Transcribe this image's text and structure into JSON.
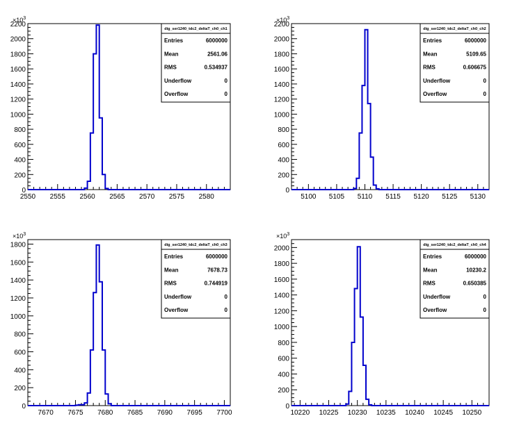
{
  "chart_data": [
    {
      "type": "histogram",
      "title": "",
      "xlabel": "",
      "ylabel": "",
      "xlim": [
        2550,
        2584
      ],
      "ylim": [
        0,
        2200
      ],
      "y_scale_label": "×10",
      "y_scale_exp": "3",
      "x_ticks": [
        2550,
        2555,
        2560,
        2565,
        2570,
        2575,
        2580
      ],
      "y_ticks": [
        0,
        200,
        400,
        600,
        800,
        1000,
        1200,
        1400,
        1600,
        1800,
        2000,
        2200
      ],
      "bin_width": 0.5,
      "bins": [
        {
          "x": 2559.5,
          "value": 20
        },
        {
          "x": 2560.0,
          "value": 110
        },
        {
          "x": 2560.5,
          "value": 750
        },
        {
          "x": 2561.0,
          "value": 1800
        },
        {
          "x": 2561.5,
          "value": 2180
        },
        {
          "x": 2562.0,
          "value": 950
        },
        {
          "x": 2562.5,
          "value": 200
        },
        {
          "x": 2563.0,
          "value": 15
        }
      ],
      "stats": {
        "name": "dig_ser1240_tdc2_deltaT_ch0_ch1",
        "rows": [
          {
            "label": "Entries",
            "value": "6000000"
          },
          {
            "label": "Mean",
            "value": "2561.06"
          },
          {
            "label": "RMS",
            "value": "0.534937"
          },
          {
            "label": "Underflow",
            "value": "0"
          },
          {
            "label": "Overflow",
            "value": "0"
          }
        ]
      },
      "line_color": "#0000cc",
      "grid": false
    },
    {
      "type": "histogram",
      "title": "",
      "xlabel": "",
      "ylabel": "",
      "xlim": [
        5097,
        5132
      ],
      "ylim": [
        0,
        2200
      ],
      "y_scale_label": "×10",
      "y_scale_exp": "3",
      "x_ticks": [
        5100,
        5105,
        5110,
        5115,
        5120,
        5125,
        5130
      ],
      "y_ticks": [
        0,
        200,
        400,
        600,
        800,
        1000,
        1200,
        1400,
        1600,
        1800,
        2000,
        2200
      ],
      "bin_width": 0.5,
      "bins": [
        {
          "x": 5108.0,
          "value": 15
        },
        {
          "x": 5108.5,
          "value": 150
        },
        {
          "x": 5109.0,
          "value": 750
        },
        {
          "x": 5109.5,
          "value": 1380
        },
        {
          "x": 5110.0,
          "value": 2120
        },
        {
          "x": 5110.5,
          "value": 1140
        },
        {
          "x": 5111.0,
          "value": 430
        },
        {
          "x": 5111.5,
          "value": 60
        },
        {
          "x": 5112.0,
          "value": 10
        }
      ],
      "stats": {
        "name": "dig_ser1240_tdc2_deltaT_ch0_ch2",
        "rows": [
          {
            "label": "Entries",
            "value": "6000000"
          },
          {
            "label": "Mean",
            "value": "5109.65"
          },
          {
            "label": "RMS",
            "value": "0.606675"
          },
          {
            "label": "Underflow",
            "value": "0"
          },
          {
            "label": "Overflow",
            "value": "0"
          }
        ]
      },
      "line_color": "#0000cc",
      "grid": false
    },
    {
      "type": "histogram",
      "title": "",
      "xlabel": "",
      "ylabel": "",
      "xlim": [
        7667,
        7701
      ],
      "ylim": [
        0,
        1850
      ],
      "y_scale_label": "×10",
      "y_scale_exp": "3",
      "x_ticks": [
        7670,
        7675,
        7680,
        7685,
        7690,
        7695,
        7700
      ],
      "y_ticks": [
        0,
        200,
        400,
        600,
        800,
        1000,
        1200,
        1400,
        1600,
        1800
      ],
      "bin_width": 0.5,
      "bins": [
        {
          "x": 7675.0,
          "value": 5
        },
        {
          "x": 7675.5,
          "value": 10
        },
        {
          "x": 7676.0,
          "value": 10
        },
        {
          "x": 7676.5,
          "value": 30
        },
        {
          "x": 7677.0,
          "value": 140
        },
        {
          "x": 7677.5,
          "value": 620
        },
        {
          "x": 7678.0,
          "value": 1260
        },
        {
          "x": 7678.5,
          "value": 1790
        },
        {
          "x": 7679.0,
          "value": 1380
        },
        {
          "x": 7679.5,
          "value": 620
        },
        {
          "x": 7680.0,
          "value": 130
        },
        {
          "x": 7680.5,
          "value": 20
        }
      ],
      "stats": {
        "name": "dig_ser1240_tdc2_deltaT_ch0_ch3",
        "rows": [
          {
            "label": "Entries",
            "value": "6000000"
          },
          {
            "label": "Mean",
            "value": "7678.73"
          },
          {
            "label": "RMS",
            "value": "0.744919"
          },
          {
            "label": "Underflow",
            "value": "0"
          },
          {
            "label": "Overflow",
            "value": "0"
          }
        ]
      },
      "line_color": "#0000cc",
      "grid": false
    },
    {
      "type": "histogram",
      "title": "",
      "xlabel": "",
      "ylabel": "",
      "xlim": [
        10218.5,
        10253
      ],
      "ylim": [
        0,
        2100
      ],
      "y_scale_label": "×10",
      "y_scale_exp": "3",
      "x_ticks": [
        10220,
        10225,
        10230,
        10235,
        10240,
        10245,
        10250
      ],
      "y_ticks": [
        0,
        200,
        400,
        600,
        800,
        1000,
        1200,
        1400,
        1600,
        1800,
        2000
      ],
      "bin_width": 0.5,
      "bins": [
        {
          "x": 10228.0,
          "value": 20
        },
        {
          "x": 10228.5,
          "value": 180
        },
        {
          "x": 10229.0,
          "value": 800
        },
        {
          "x": 10229.5,
          "value": 1480
        },
        {
          "x": 10230.0,
          "value": 2010
        },
        {
          "x": 10230.5,
          "value": 1120
        },
        {
          "x": 10231.0,
          "value": 510
        },
        {
          "x": 10231.5,
          "value": 80
        },
        {
          "x": 10232.0,
          "value": 10
        }
      ],
      "stats": {
        "name": "dig_ser1240_tdc2_deltaT_ch0_ch4",
        "rows": [
          {
            "label": "Entries",
            "value": "6000000"
          },
          {
            "label": "Mean",
            "value": "10230.2"
          },
          {
            "label": "RMS",
            "value": "0.650385"
          },
          {
            "label": "Underflow",
            "value": "0"
          },
          {
            "label": "Overflow",
            "value": "0"
          }
        ]
      },
      "line_color": "#0000cc",
      "grid": false
    }
  ]
}
